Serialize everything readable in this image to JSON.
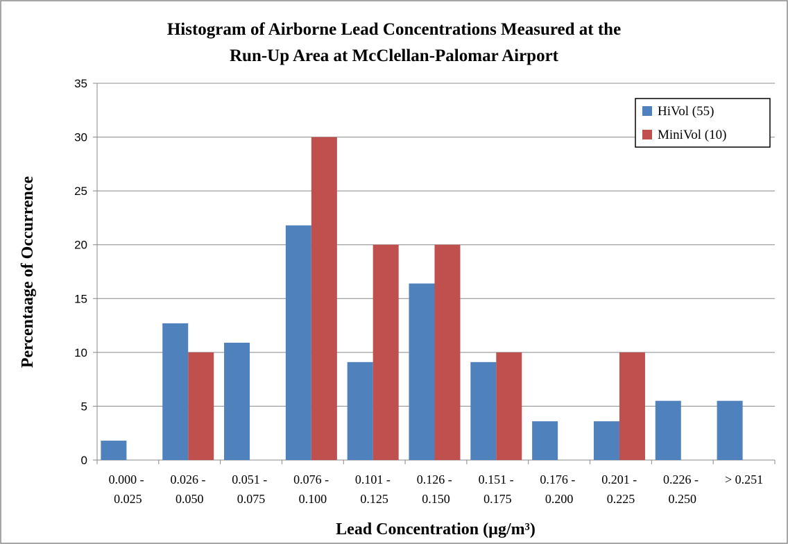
{
  "chart_data": {
    "type": "bar",
    "title": [
      "Histogram of Airborne  Lead Concentrations  Measured at the",
      "Run-Up  Area at McClellan-Palomar  Airport"
    ],
    "x_label": "Lead Concentration  (µg/m³)",
    "y_label": "Percentaage of Occurrence",
    "categories": [
      "0.000 - 0.025",
      "0.026 - 0.050",
      "0.051 - 0.075",
      "0.076 - 0.100",
      "0.101 - 0.125",
      "0.126 - 0.150",
      "0.151 - 0.175",
      "0.176 - 0.200",
      "0.201 - 0.225",
      "0.226 - 0.250",
      "> 0.251"
    ],
    "series": [
      {
        "name": "HiVol (55)",
        "color": "#4f81bd",
        "values": [
          1.8,
          12.7,
          10.9,
          21.8,
          9.1,
          16.4,
          9.1,
          3.6,
          3.6,
          5.5,
          5.5
        ]
      },
      {
        "name": "MiniVol (10)",
        "color": "#c0504d",
        "values": [
          0,
          10,
          0,
          30,
          20,
          20,
          10,
          0,
          10,
          0,
          0
        ]
      }
    ],
    "ylim": [
      0,
      35
    ],
    "yticks": [
      0,
      5,
      10,
      15,
      20,
      25,
      30,
      35
    ],
    "grid": true,
    "legend": "top-right"
  }
}
